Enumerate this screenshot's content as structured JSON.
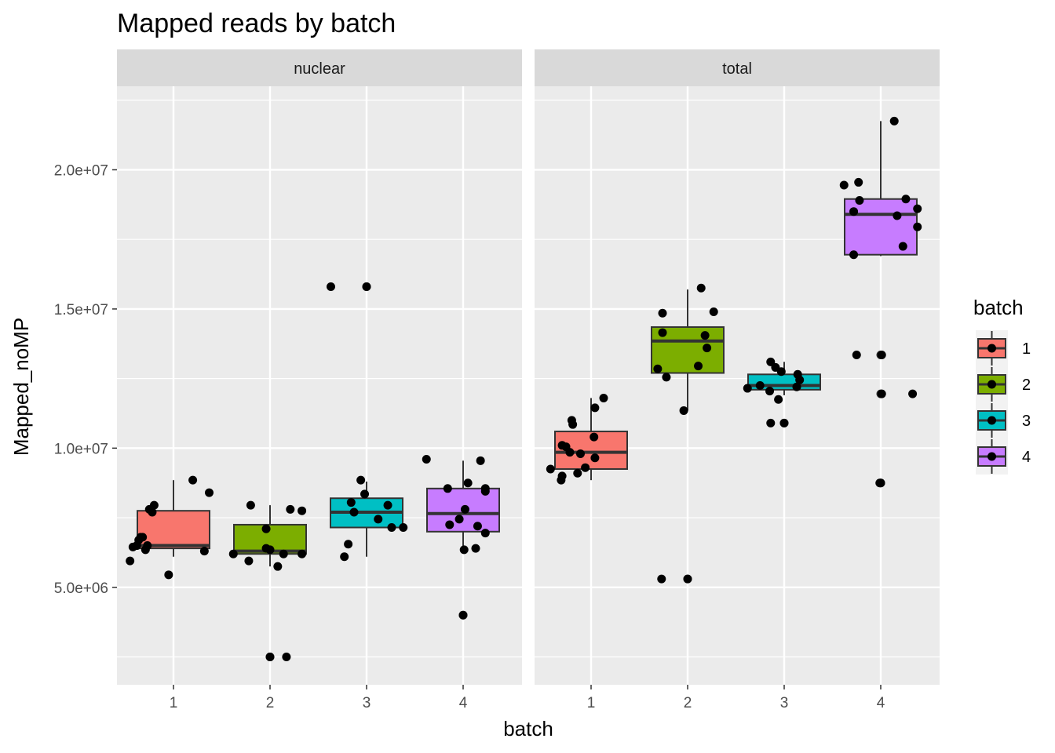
{
  "colors": {
    "panel_bg": "#EBEBEB",
    "grid_major": "#FFFFFF",
    "strip_bg": "#D9D9D9",
    "point": "#000000",
    "box_line": "#333333",
    "batch_colors": [
      "#F8766D",
      "#7CAE00",
      "#00BFC4",
      "#C77CFF"
    ]
  },
  "chart_data": {
    "type": "box",
    "title": "Mapped reads by batch",
    "xlabel": "batch",
    "ylabel": "Mapped_noMP",
    "ylim": [
      1500000,
      23000000
    ],
    "yticks": [
      5000000,
      10000000,
      15000000,
      20000000
    ],
    "ytick_labels": [
      "5.0e+06",
      "1.0e+07",
      "1.5e+07",
      "2.0e+07"
    ],
    "categories": [
      "1",
      "2",
      "3",
      "4"
    ],
    "grid": true,
    "legend": {
      "title": "batch",
      "position": "right",
      "entries": [
        "1",
        "2",
        "3",
        "4"
      ]
    },
    "panels": [
      {
        "label": "nuclear",
        "boxes": [
          {
            "batch": "1",
            "q1": 6400000,
            "median": 6500000,
            "q3": 7750000,
            "whisker_low": 6100000,
            "whisker_high": 8850000,
            "outliers": []
          },
          {
            "batch": "2",
            "q1": 6200000,
            "median": 6300000,
            "q3": 7250000,
            "whisker_low": 5750000,
            "whisker_high": 7950000,
            "outliers": [
              2500000
            ]
          },
          {
            "batch": "3",
            "q1": 7150000,
            "median": 7700000,
            "q3": 8200000,
            "whisker_low": 6100000,
            "whisker_high": 8800000,
            "outliers": [
              15800000
            ]
          },
          {
            "batch": "4",
            "q1": 7000000,
            "median": 7650000,
            "q3": 8550000,
            "whisker_low": 6400000,
            "whisker_high": 9550000,
            "outliers": [
              4000000
            ]
          }
        ],
        "points": [
          {
            "batch": "1",
            "x": 0.55,
            "y": 5950000
          },
          {
            "batch": "1",
            "x": 0.58,
            "y": 6450000
          },
          {
            "batch": "1",
            "x": 0.62,
            "y": 6500000
          },
          {
            "batch": "1",
            "x": 0.64,
            "y": 6700000
          },
          {
            "batch": "1",
            "x": 0.66,
            "y": 6800000
          },
          {
            "batch": "1",
            "x": 0.68,
            "y": 6800000
          },
          {
            "batch": "1",
            "x": 0.71,
            "y": 6350000
          },
          {
            "batch": "1",
            "x": 0.73,
            "y": 6500000
          },
          {
            "batch": "1",
            "x": 0.78,
            "y": 7700000
          },
          {
            "batch": "1",
            "x": 0.75,
            "y": 7800000
          },
          {
            "batch": "1",
            "x": 0.8,
            "y": 7950000
          },
          {
            "batch": "1",
            "x": 0.95,
            "y": 5450000
          },
          {
            "batch": "1",
            "x": 1.2,
            "y": 8850000
          },
          {
            "batch": "1",
            "x": 1.32,
            "y": 6300000
          },
          {
            "batch": "1",
            "x": 1.37,
            "y": 8400000
          },
          {
            "batch": "2",
            "x": 1.62,
            "y": 6200000
          },
          {
            "batch": "2",
            "x": 1.78,
            "y": 5950000
          },
          {
            "batch": "2",
            "x": 1.96,
            "y": 6400000
          },
          {
            "batch": "2",
            "x": 1.96,
            "y": 7100000
          },
          {
            "batch": "2",
            "x": 2.0,
            "y": 6350000
          },
          {
            "batch": "2",
            "x": 1.8,
            "y": 7950000
          },
          {
            "batch": "2",
            "x": 2.0,
            "y": 2500000
          },
          {
            "batch": "2",
            "x": 2.08,
            "y": 5750000
          },
          {
            "batch": "2",
            "x": 2.14,
            "y": 6200000
          },
          {
            "batch": "2",
            "x": 2.17,
            "y": 2500000
          },
          {
            "batch": "2",
            "x": 2.21,
            "y": 7800000
          },
          {
            "batch": "2",
            "x": 2.33,
            "y": 7750000
          },
          {
            "batch": "2",
            "x": 2.33,
            "y": 6200000
          },
          {
            "batch": "3",
            "x": 2.63,
            "y": 15800000
          },
          {
            "batch": "3",
            "x": 2.77,
            "y": 6100000
          },
          {
            "batch": "3",
            "x": 2.81,
            "y": 6550000
          },
          {
            "batch": "3",
            "x": 2.84,
            "y": 8050000
          },
          {
            "batch": "3",
            "x": 2.87,
            "y": 7700000
          },
          {
            "batch": "3",
            "x": 2.94,
            "y": 8850000
          },
          {
            "batch": "3",
            "x": 2.98,
            "y": 8350000
          },
          {
            "batch": "3",
            "x": 3.0,
            "y": 15800000
          },
          {
            "batch": "3",
            "x": 3.12,
            "y": 7450000
          },
          {
            "batch": "3",
            "x": 3.22,
            "y": 7950000
          },
          {
            "batch": "3",
            "x": 3.26,
            "y": 7150000
          },
          {
            "batch": "3",
            "x": 3.38,
            "y": 7150000
          },
          {
            "batch": "4",
            "x": 3.62,
            "y": 9600000
          },
          {
            "batch": "4",
            "x": 3.84,
            "y": 8550000
          },
          {
            "batch": "4",
            "x": 3.86,
            "y": 7250000
          },
          {
            "batch": "4",
            "x": 3.96,
            "y": 7450000
          },
          {
            "batch": "4",
            "x": 4.0,
            "y": 4000000
          },
          {
            "batch": "4",
            "x": 4.01,
            "y": 6350000
          },
          {
            "batch": "4",
            "x": 4.02,
            "y": 7800000
          },
          {
            "batch": "4",
            "x": 4.05,
            "y": 8750000
          },
          {
            "batch": "4",
            "x": 4.13,
            "y": 6400000
          },
          {
            "batch": "4",
            "x": 4.15,
            "y": 7200000
          },
          {
            "batch": "4",
            "x": 4.18,
            "y": 9550000
          },
          {
            "batch": "4",
            "x": 4.23,
            "y": 8450000
          },
          {
            "batch": "4",
            "x": 4.23,
            "y": 8550000
          },
          {
            "batch": "4",
            "x": 4.23,
            "y": 6950000
          }
        ]
      },
      {
        "label": "total",
        "boxes": [
          {
            "batch": "1",
            "q1": 9250000,
            "median": 9850000,
            "q3": 10600000,
            "whisker_low": 8850000,
            "whisker_high": 11800000,
            "outliers": []
          },
          {
            "batch": "2",
            "q1": 12700000,
            "median": 13850000,
            "q3": 14350000,
            "whisker_low": 11350000,
            "whisker_high": 15700000,
            "outliers": [
              5300000
            ]
          },
          {
            "batch": "3",
            "q1": 12100000,
            "median": 12250000,
            "q3": 12650000,
            "whisker_low": 11900000,
            "whisker_high": 13100000,
            "outliers": [
              10900000
            ]
          },
          {
            "batch": "4",
            "q1": 16950000,
            "median": 18400000,
            "q3": 18950000,
            "whisker_low": 16900000,
            "whisker_high": 21750000,
            "outliers": [
              8750000,
              11950000,
              13350000
            ]
          }
        ],
        "points": [
          {
            "batch": "1",
            "x": 0.58,
            "y": 9250000
          },
          {
            "batch": "1",
            "x": 0.69,
            "y": 8850000
          },
          {
            "batch": "1",
            "x": 0.7,
            "y": 9000000
          },
          {
            "batch": "1",
            "x": 0.7,
            "y": 10100000
          },
          {
            "batch": "1",
            "x": 0.74,
            "y": 10050000
          },
          {
            "batch": "1",
            "x": 0.78,
            "y": 9850000
          },
          {
            "batch": "1",
            "x": 0.8,
            "y": 11000000
          },
          {
            "batch": "1",
            "x": 0.81,
            "y": 10850000
          },
          {
            "batch": "1",
            "x": 0.86,
            "y": 9100000
          },
          {
            "batch": "1",
            "x": 0.89,
            "y": 9800000
          },
          {
            "batch": "1",
            "x": 0.94,
            "y": 9300000
          },
          {
            "batch": "1",
            "x": 1.03,
            "y": 10400000
          },
          {
            "batch": "1",
            "x": 1.04,
            "y": 9650000
          },
          {
            "batch": "1",
            "x": 1.04,
            "y": 11450000
          },
          {
            "batch": "1",
            "x": 1.13,
            "y": 11800000
          },
          {
            "batch": "2",
            "x": 1.69,
            "y": 12850000
          },
          {
            "batch": "2",
            "x": 1.73,
            "y": 5300000
          },
          {
            "batch": "2",
            "x": 1.74,
            "y": 14850000
          },
          {
            "batch": "2",
            "x": 1.74,
            "y": 14150000
          },
          {
            "batch": "2",
            "x": 1.78,
            "y": 12550000
          },
          {
            "batch": "2",
            "x": 1.96,
            "y": 11350000
          },
          {
            "batch": "2",
            "x": 2.0,
            "y": 5300000
          },
          {
            "batch": "2",
            "x": 2.11,
            "y": 12950000
          },
          {
            "batch": "2",
            "x": 2.14,
            "y": 15750000
          },
          {
            "batch": "2",
            "x": 2.18,
            "y": 14050000
          },
          {
            "batch": "2",
            "x": 2.2,
            "y": 13600000
          },
          {
            "batch": "2",
            "x": 2.27,
            "y": 14900000
          },
          {
            "batch": "3",
            "x": 2.62,
            "y": 12150000
          },
          {
            "batch": "3",
            "x": 2.75,
            "y": 12250000
          },
          {
            "batch": "3",
            "x": 2.85,
            "y": 12050000
          },
          {
            "batch": "3",
            "x": 2.86,
            "y": 10900000
          },
          {
            "batch": "3",
            "x": 2.86,
            "y": 13100000
          },
          {
            "batch": "3",
            "x": 2.91,
            "y": 12900000
          },
          {
            "batch": "3",
            "x": 2.94,
            "y": 11750000
          },
          {
            "batch": "3",
            "x": 2.97,
            "y": 12750000
          },
          {
            "batch": "3",
            "x": 3.0,
            "y": 10900000
          },
          {
            "batch": "3",
            "x": 3.13,
            "y": 12200000
          },
          {
            "batch": "3",
            "x": 3.14,
            "y": 12650000
          },
          {
            "batch": "3",
            "x": 3.16,
            "y": 12450000
          },
          {
            "batch": "4",
            "x": 3.62,
            "y": 19450000
          },
          {
            "batch": "4",
            "x": 3.72,
            "y": 18500000
          },
          {
            "batch": "4",
            "x": 3.72,
            "y": 16950000
          },
          {
            "batch": "4",
            "x": 3.75,
            "y": 13350000
          },
          {
            "batch": "4",
            "x": 3.77,
            "y": 19550000
          },
          {
            "batch": "4",
            "x": 3.78,
            "y": 18900000
          },
          {
            "batch": "4",
            "x": 3.99,
            "y": 8750000
          },
          {
            "batch": "4",
            "x": 4.0,
            "y": 8750000
          },
          {
            "batch": "4",
            "x": 4.01,
            "y": 11950000
          },
          {
            "batch": "4",
            "x": 4.01,
            "y": 13350000
          },
          {
            "batch": "4",
            "x": 4.14,
            "y": 21750000
          },
          {
            "batch": "4",
            "x": 4.17,
            "y": 18350000
          },
          {
            "batch": "4",
            "x": 4.23,
            "y": 17250000
          },
          {
            "batch": "4",
            "x": 4.26,
            "y": 18950000
          },
          {
            "batch": "4",
            "x": 4.33,
            "y": 11950000
          },
          {
            "batch": "4",
            "x": 4.38,
            "y": 18600000
          },
          {
            "batch": "4",
            "x": 4.38,
            "y": 17950000
          }
        ]
      }
    ]
  }
}
